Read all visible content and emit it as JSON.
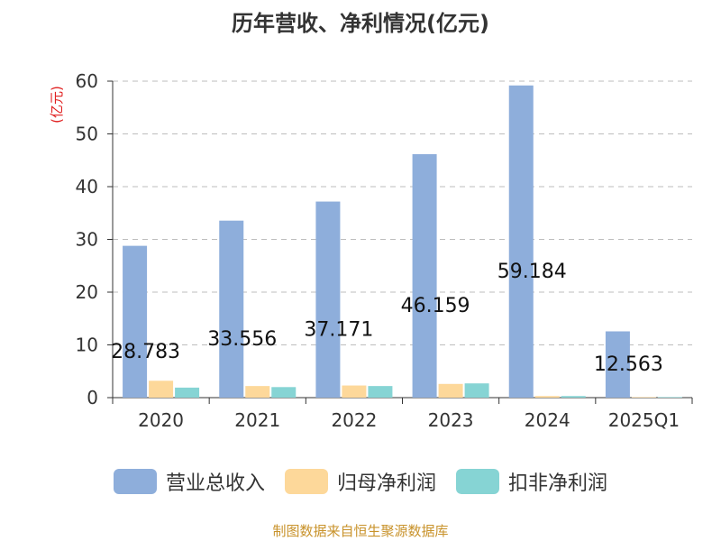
{
  "chart_data": {
    "type": "bar",
    "title": "历年营收、净利情况(亿元)",
    "ylabel": "(亿元)",
    "xlabel": "",
    "categories": [
      "2020",
      "2021",
      "2022",
      "2023",
      "2024",
      "2025Q1"
    ],
    "ylim": [
      0,
      60
    ],
    "yticks": [
      0,
      10,
      20,
      30,
      40,
      50,
      60
    ],
    "grid": true,
    "legend_position": "bottom",
    "series": [
      {
        "name": "营业总收入",
        "color": "#8eaedb",
        "values": [
          28.783,
          33.556,
          37.171,
          46.159,
          59.184,
          12.563
        ],
        "data_labels": [
          "28.783",
          "33.556",
          "37.171",
          "46.159",
          "59.184",
          "12.563"
        ]
      },
      {
        "name": "归母净利润",
        "color": "#fdd89a",
        "values": [
          3.2,
          2.2,
          2.3,
          2.6,
          0.3,
          0.1
        ]
      },
      {
        "name": "扣非净利润",
        "color": "#86d4d4",
        "values": [
          1.9,
          2.0,
          2.2,
          2.7,
          0.3,
          0.1
        ]
      }
    ]
  },
  "footer": {
    "source": "制图数据来自恒生聚源数据库"
  }
}
